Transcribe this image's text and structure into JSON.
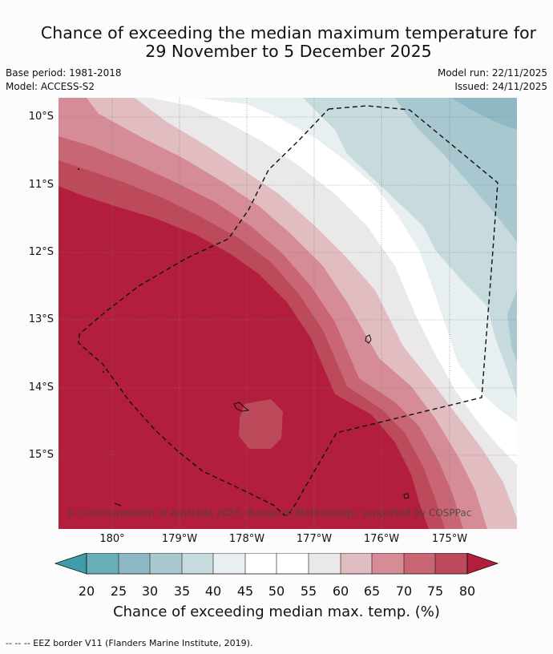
{
  "title_line1": "Chance of exceeding the median maximum temperature for",
  "title_line2": "29 November to 5 December 2025",
  "base_period": "Base period: 1981-2018",
  "model": "Model: ACCESS-S2",
  "model_run": "Model run: 22/11/2025",
  "issued": "Issued: 24/11/2025",
  "lat_labels": [
    "10°S",
    "11°S",
    "12°S",
    "13°S",
    "14°S",
    "15°S"
  ],
  "lon_labels": [
    "180°",
    "179°W",
    "178°W",
    "177°W",
    "176°W",
    "175°W"
  ],
  "copyright": "© Commonwealth of Australia 2025, Bureau of Meteorology, supported by COSPPac",
  "colorbar": {
    "ticks": [
      "20",
      "25",
      "30",
      "35",
      "40",
      "45",
      "50",
      "55",
      "60",
      "65",
      "70",
      "75",
      "80"
    ],
    "label": "Chance of exceeding median max. temp. (%)",
    "colors": {
      "below20": "#3f9caa",
      "c20_25": "#6aaebb",
      "c25_30": "#8fb8c5",
      "c30_35": "#a9c7cf",
      "c35_40": "#c7dade",
      "c40_45": "#e8eff1",
      "c45_55": "#ffffff",
      "c55_60": "#ebe8e9",
      "c60_65": "#e1bcc1",
      "c65_70": "#d58c96",
      "c70_75": "#c86673",
      "c75_80": "#bd4a5b",
      "above80": "#b21e3b"
    }
  },
  "legend_text": "--  --  -- EEZ border V11 (Flanders Marine Institute, 2019)."
}
